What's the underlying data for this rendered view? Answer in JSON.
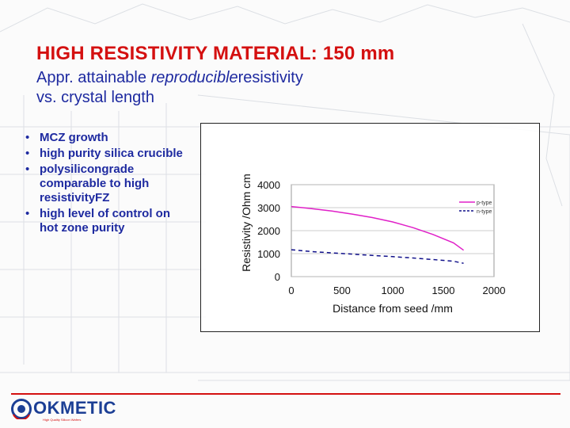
{
  "slide": {
    "title": "HIGH RESISTIVITY MATERIAL: 150 mm",
    "subtitle_part1": "Appr. attainable",
    "subtitle_em": "reproducible",
    "subtitle_part2": "resistivity",
    "subtitle_line2": "vs. crystal length"
  },
  "bullets": [
    "MCZ growth",
    "high purity silica crucible",
    "polysilicongrade comparable to high resistivityFZ",
    "high level of control on hot zone purity"
  ],
  "logo": {
    "name": "OKMETIC",
    "tagline": "High Quality Silicon Wafers"
  },
  "colors": {
    "title": "#d41010",
    "text": "#1e2aa0",
    "ptype": "#e020c8",
    "ntype": "#10108a",
    "logo": "#1c3f95"
  },
  "chart_data": {
    "type": "line",
    "title": "",
    "xlabel": "Distance from seed /mm",
    "ylabel": "Resistivity /Ohm cm",
    "xlim": [
      0,
      2000
    ],
    "ylim": [
      0,
      4000
    ],
    "xticks": [
      "0",
      "500",
      "1000",
      "1500",
      "2000"
    ],
    "yticks": [
      "0",
      "1000",
      "2000",
      "3000",
      "4000"
    ],
    "grid": true,
    "legend": "top-right",
    "series": [
      {
        "name": "p-type",
        "style": "solid",
        "x": [
          0,
          200,
          400,
          600,
          800,
          1000,
          1200,
          1400,
          1600,
          1700
        ],
        "y": [
          3050,
          2960,
          2850,
          2720,
          2570,
          2380,
          2130,
          1830,
          1470,
          1150
        ]
      },
      {
        "name": "n-type",
        "style": "dashed",
        "x": [
          0,
          200,
          400,
          600,
          800,
          1000,
          1200,
          1400,
          1600,
          1700
        ],
        "y": [
          1170,
          1090,
          1030,
          980,
          920,
          870,
          810,
          740,
          670,
          580
        ]
      }
    ]
  }
}
